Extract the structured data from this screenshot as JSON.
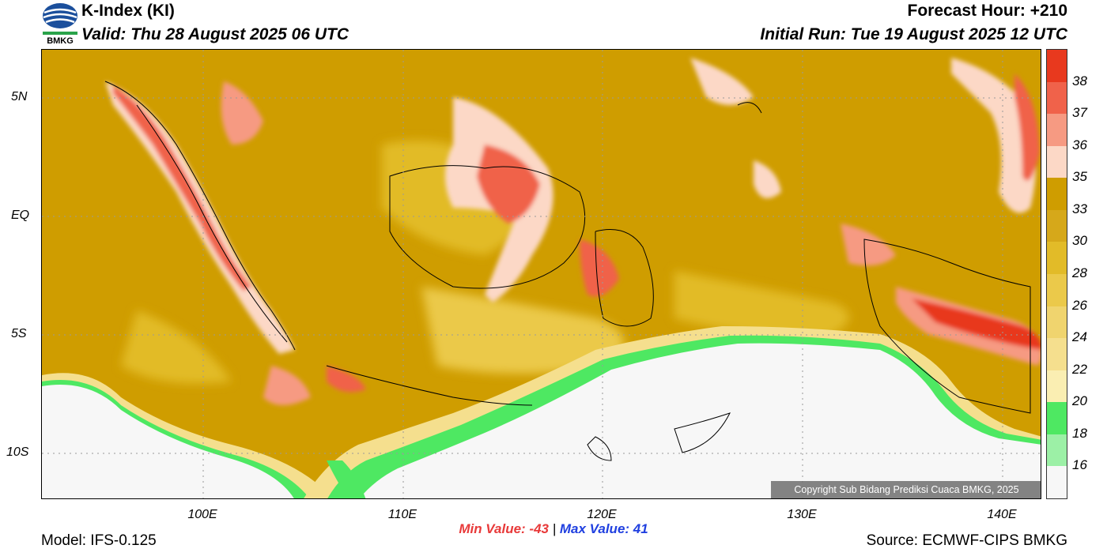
{
  "header": {
    "title": "K-Index (KI)",
    "valid": "Valid: Thu 28 August 2025 06 UTC",
    "forecast_hour": "Forecast Hour: +210",
    "initial_run": "Initial Run: Tue 19 August 2025 12 UTC"
  },
  "logo": {
    "text": "BMKG"
  },
  "axes": {
    "y_labels": [
      "5N",
      "EQ",
      "5S",
      "10S"
    ],
    "x_labels": [
      "100E",
      "110E",
      "120E",
      "130E",
      "140E"
    ]
  },
  "colorbar": {
    "labels": [
      "38",
      "37",
      "36",
      "35",
      "33",
      "30",
      "28",
      "26",
      "24",
      "22",
      "20",
      "18",
      "16"
    ],
    "colors": [
      "#e8391e",
      "#f0624a",
      "#f69a82",
      "#fcd8c6",
      "#cf9d00",
      "#d6a81a",
      "#e2bb28",
      "#ebc94a",
      "#f0d46e",
      "#f5df8e",
      "#faeeb2",
      "#4ee862",
      "#9cf0a6",
      "#f7f7f7"
    ]
  },
  "copyright": "Copyright Sub Bidang Prediksi Cuaca BMKG, 2025",
  "stats": {
    "min_label": "Min Value: -43",
    "separator": "|",
    "max_label": "Max Value:  41"
  },
  "footer": {
    "model": "Model: IFS-0.125",
    "source": "Source: ECMWF-CIPS BMKG"
  }
}
